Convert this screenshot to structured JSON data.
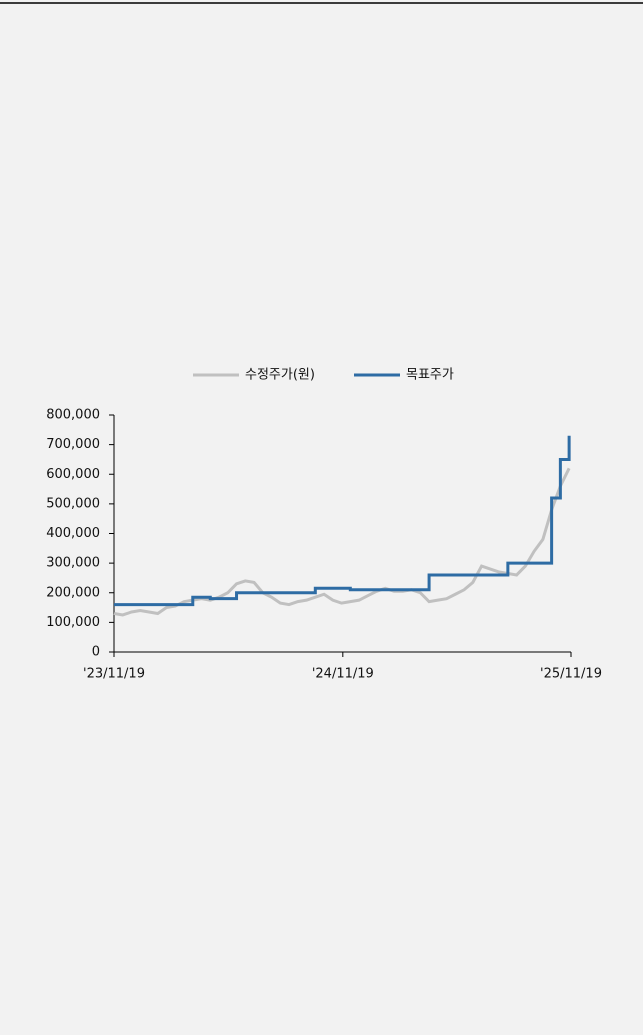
{
  "chart_data": {
    "type": "line",
    "x": [
      "2023-11-19",
      "2023-12-03",
      "2023-12-17",
      "2023-12-31",
      "2024-01-14",
      "2024-01-28",
      "2024-02-11",
      "2024-02-25",
      "2024-03-10",
      "2024-03-24",
      "2024-04-07",
      "2024-04-21",
      "2024-05-05",
      "2024-05-19",
      "2024-06-02",
      "2024-06-16",
      "2024-06-30",
      "2024-07-14",
      "2024-07-28",
      "2024-08-11",
      "2024-08-25",
      "2024-09-08",
      "2024-09-22",
      "2024-10-06",
      "2024-10-20",
      "2024-11-03",
      "2024-11-17",
      "2024-12-01",
      "2024-12-15",
      "2024-12-29",
      "2025-01-12",
      "2025-01-26",
      "2025-02-09",
      "2025-02-23",
      "2025-03-09",
      "2025-03-23",
      "2025-04-06",
      "2025-04-20",
      "2025-05-04",
      "2025-05-18",
      "2025-06-01",
      "2025-06-15",
      "2025-06-29",
      "2025-07-13",
      "2025-07-27",
      "2025-08-10",
      "2025-08-24",
      "2025-09-07",
      "2025-09-21",
      "2025-10-05",
      "2025-10-19",
      "2025-11-02",
      "2025-11-16"
    ],
    "series": [
      {
        "name": "수정주가(원)",
        "color": "#c0c0c0",
        "step": false,
        "values": [
          130000,
          125000,
          135000,
          140000,
          135000,
          130000,
          150000,
          155000,
          170000,
          175000,
          180000,
          175000,
          185000,
          200000,
          230000,
          240000,
          235000,
          200000,
          185000,
          165000,
          160000,
          170000,
          175000,
          185000,
          195000,
          175000,
          165000,
          170000,
          175000,
          190000,
          205000,
          215000,
          205000,
          205000,
          210000,
          200000,
          170000,
          175000,
          180000,
          195000,
          210000,
          235000,
          290000,
          280000,
          270000,
          265000,
          260000,
          290000,
          340000,
          380000,
          480000,
          560000,
          620000
        ]
      },
      {
        "name": "목표주가",
        "color": "#2e6ca4",
        "step": true,
        "values": [
          160000,
          160000,
          160000,
          160000,
          160000,
          160000,
          160000,
          160000,
          160000,
          185000,
          185000,
          180000,
          180000,
          180000,
          200000,
          200000,
          200000,
          200000,
          200000,
          200000,
          200000,
          200000,
          200000,
          215000,
          215000,
          215000,
          215000,
          210000,
          210000,
          210000,
          210000,
          210000,
          210000,
          210000,
          210000,
          210000,
          260000,
          260000,
          260000,
          260000,
          260000,
          260000,
          260000,
          260000,
          260000,
          300000,
          300000,
          300000,
          300000,
          300000,
          520000,
          650000,
          730000
        ]
      }
    ],
    "xlim": [
      "2023-11-19",
      "2025-11-19"
    ],
    "xticks": [
      {
        "value": "2023-11-19",
        "label": "'23/11/19"
      },
      {
        "value": "2024-11-19",
        "label": "'24/11/19"
      },
      {
        "value": "2025-11-19",
        "label": "'25/11/19"
      }
    ],
    "ylim": [
      0,
      800000
    ],
    "yticks": [
      0,
      {
        "value": 100000,
        "label": "100,000"
      },
      {
        "value": 200000,
        "label": "200,000"
      },
      {
        "value": 300000,
        "label": "300,000"
      },
      {
        "value": 400000,
        "label": "400,000"
      },
      {
        "value": 500000,
        "label": "500,000"
      },
      {
        "value": 600000,
        "label": "600,000"
      },
      {
        "value": 700000,
        "label": "700,000"
      },
      {
        "value": 800000,
        "label": "800,000"
      }
    ],
    "grid": false,
    "legend": "top"
  }
}
